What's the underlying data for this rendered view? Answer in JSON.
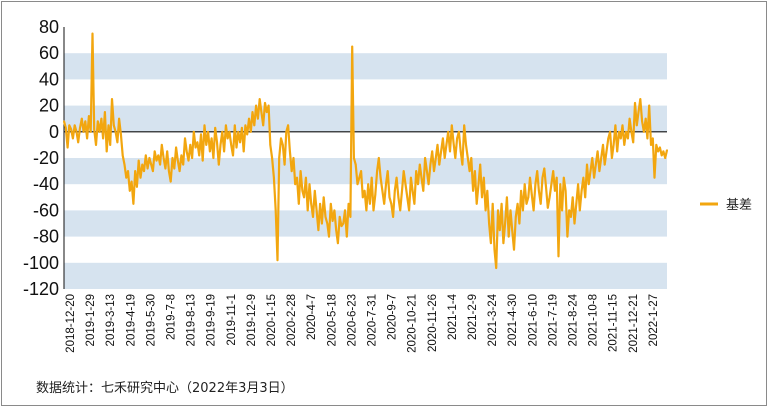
{
  "chart_data": {
    "type": "line",
    "title": "",
    "xlabel": "",
    "ylabel": "",
    "ylim": [
      -120,
      80
    ],
    "yticks": [
      80,
      60,
      40,
      20,
      0,
      -20,
      -40,
      -60,
      -80,
      -100,
      -120
    ],
    "banded_background": true,
    "band_color": "#d6e3ef",
    "line_color": "#f2a60f",
    "legend_position": "right",
    "x_tick_labels": [
      "2018-12-20",
      "2019-1-29",
      "2019-3-13",
      "2019-4-19",
      "2019-5-30",
      "2019-7-8",
      "2019-8-13",
      "2019-9-19",
      "2019-11-1",
      "2019-12-9",
      "2020-1-15",
      "2020-2-28",
      "2020-4-7",
      "2020-5-18",
      "2020-6-23",
      "2020-7-31",
      "2020-9-7",
      "2020-10-21",
      "2020-11-26",
      "2021-1-4",
      "2021-2-9",
      "2021-3-24",
      "2021-4-30",
      "2021-6-10",
      "2021-7-19",
      "2021-8-24",
      "2021-10-8",
      "2021-11-15",
      "2021-12-21",
      "2022-1-27"
    ],
    "series": [
      {
        "name": "基差",
        "values": [
          8,
          3,
          -12,
          5,
          2,
          -5,
          5,
          0,
          -8,
          3,
          10,
          0,
          8,
          -5,
          12,
          0,
          75,
          2,
          -10,
          8,
          0,
          10,
          -5,
          15,
          -15,
          5,
          -10,
          25,
          5,
          0,
          -8,
          10,
          -2,
          -18,
          -25,
          -35,
          -30,
          -45,
          -38,
          -55,
          -30,
          -42,
          -22,
          -35,
          -25,
          -30,
          -18,
          -28,
          -20,
          -25,
          -30,
          -15,
          -22,
          -18,
          -25,
          -10,
          -20,
          -28,
          -15,
          -30,
          -38,
          -20,
          -28,
          -12,
          -22,
          -30,
          -18,
          -25,
          -5,
          -15,
          -22,
          -10,
          -20,
          0,
          -12,
          -8,
          -18,
          -2,
          -22,
          5,
          -10,
          0,
          -15,
          -5,
          -20,
          3,
          -8,
          -25,
          -10,
          0,
          -15,
          5,
          -5,
          0,
          -10,
          -18,
          5,
          -12,
          0,
          -8,
          3,
          -15,
          5,
          -2,
          10,
          0,
          15,
          5,
          20,
          10,
          25,
          15,
          5,
          22,
          15,
          20,
          -10,
          -20,
          -35,
          -60,
          -98,
          -20,
          -5,
          -10,
          -25,
          0,
          5,
          -15,
          -30,
          -20,
          -40,
          -35,
          -55,
          -30,
          -45,
          -50,
          -35,
          -60,
          -40,
          -55,
          -65,
          -45,
          -60,
          -75,
          -55,
          -70,
          -50,
          -65,
          -70,
          -80,
          -55,
          -68,
          -60,
          -75,
          -85,
          -65,
          -72,
          -70,
          -60,
          -80,
          -55,
          -65,
          65,
          -20,
          -25,
          -40,
          -35,
          -30,
          -50,
          -45,
          -60,
          -40,
          -55,
          -35,
          -60,
          -48,
          -30,
          -20,
          -35,
          -45,
          -55,
          -40,
          -30,
          -50,
          -55,
          -65,
          -45,
          -35,
          -50,
          -60,
          -45,
          -30,
          -40,
          -50,
          -60,
          -35,
          -45,
          -55,
          -30,
          -40,
          -25,
          -35,
          -45,
          -20,
          -30,
          -40,
          -25,
          -15,
          -30,
          -20,
          -10,
          -25,
          -15,
          -5,
          -20,
          -10,
          0,
          -15,
          5,
          -8,
          -20,
          -5,
          0,
          -15,
          -25,
          5,
          -10,
          -20,
          -30,
          -20,
          -45,
          -30,
          -55,
          -40,
          -25,
          -50,
          -35,
          -60,
          -45,
          -70,
          -85,
          -55,
          -90,
          -104,
          -60,
          -75,
          -55,
          -85,
          -70,
          -50,
          -80,
          -60,
          -75,
          -90,
          -65,
          -55,
          -70,
          -45,
          -60,
          -40,
          -55,
          -50,
          -35,
          -48,
          -60,
          -40,
          -30,
          -45,
          -55,
          -35,
          -28,
          -42,
          -58,
          -50,
          -40,
          -30,
          -45,
          -35,
          -95,
          -40,
          -60,
          -35,
          -45,
          -80,
          -60,
          -65,
          -50,
          -70,
          -55,
          -40,
          -60,
          -45,
          -35,
          -50,
          -25,
          -40,
          -30,
          -20,
          -35,
          -25,
          -15,
          -30,
          -20,
          -10,
          -25,
          -15,
          -5,
          0,
          -20,
          -10,
          5,
          -15,
          0,
          -5,
          5,
          -10,
          0,
          -5,
          10,
          0,
          -8,
          22,
          5,
          15,
          25,
          8,
          0,
          10,
          -5,
          20,
          -10,
          -5,
          -35,
          -10,
          -15,
          -12,
          -18,
          -15,
          -20,
          -14
        ]
      }
    ]
  },
  "source_note": "数据统计：七禾研究中心（2022年3月3日）"
}
